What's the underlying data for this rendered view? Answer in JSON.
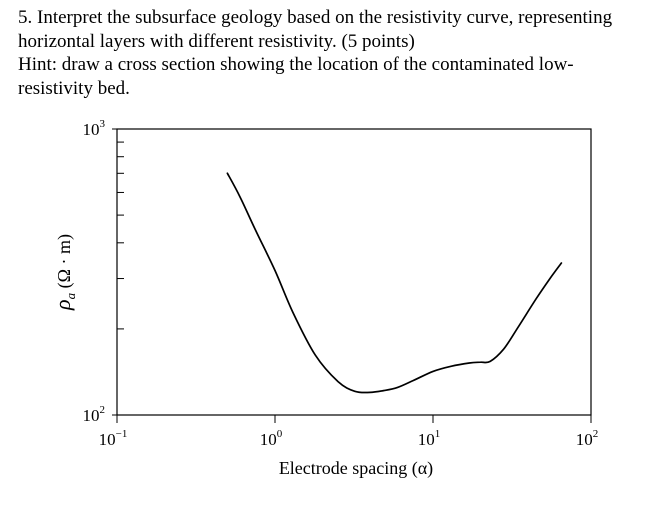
{
  "question": {
    "line1": "5. Interpret the subsurface geology based on the resistivity curve, representing",
    "line2": "horizontal layers with different resistivity. (5 points)",
    "line3": "Hint: draw a cross section showing the location of the contaminated low-",
    "line4": "resistivity bed."
  },
  "chart_data": {
    "type": "line",
    "xscale": "log",
    "yscale": "log",
    "xlim": [
      0.1,
      100
    ],
    "ylim": [
      100,
      1000
    ],
    "xlabel": "Electrode spacing (α)",
    "ylabel": "ρa (Ω · m)",
    "ylabel_main": "ρ",
    "ylabel_sub": "a",
    "ylabel_rest": " (Ω · m)",
    "x_tick_labels": [
      {
        "value": 0.1,
        "base": "10",
        "exp": "−1"
      },
      {
        "value": 1,
        "base": "10",
        "exp": "0"
      },
      {
        "value": 10,
        "base": "10",
        "exp": "1"
      },
      {
        "value": 100,
        "base": "10",
        "exp": "2"
      }
    ],
    "y_tick_labels": [
      {
        "value": 100,
        "base": "10",
        "exp": "2"
      },
      {
        "value": 1000,
        "base": "10",
        "exp": "3"
      }
    ],
    "grid": false,
    "series": [
      {
        "x": [
          0.5,
          0.6,
          0.75,
          1.0,
          1.3,
          1.8,
          2.5,
          3.2,
          4.0,
          5.0,
          6.0,
          7.5,
          10,
          13,
          17,
          20,
          23,
          28,
          35,
          45,
          55,
          65
        ],
        "y": [
          700,
          580,
          445,
          320,
          228,
          162,
          131,
          121,
          120,
          122,
          125,
          132,
          142,
          148,
          152,
          153,
          154,
          170,
          205,
          255,
          300,
          340
        ]
      }
    ]
  }
}
